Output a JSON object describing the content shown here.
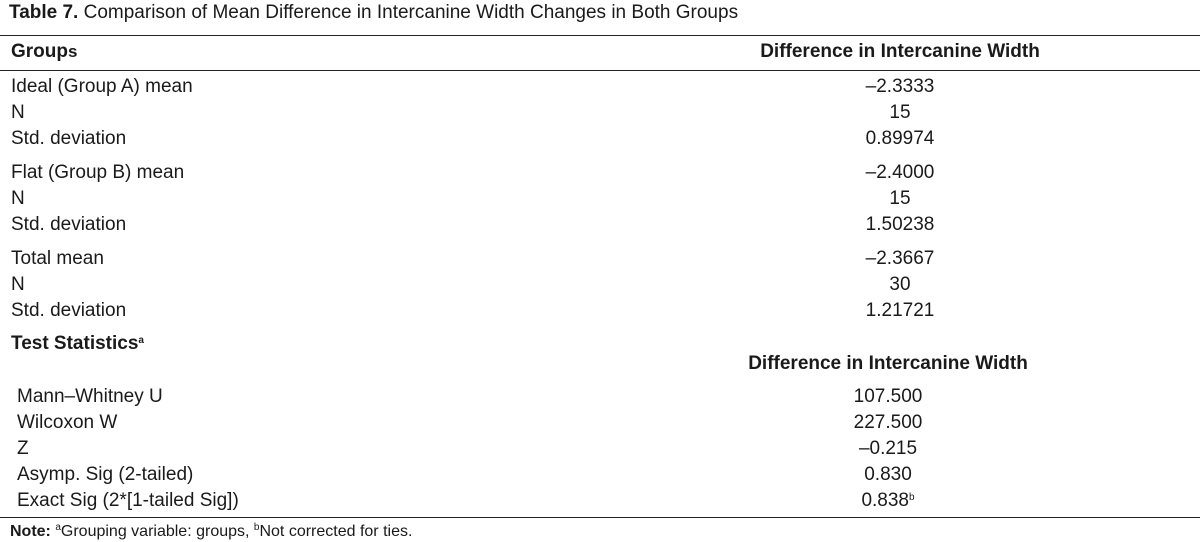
{
  "caption": {
    "number": "Table 7.",
    "text": "Comparison of Mean Difference in Intercanine Width Changes in Both Groups"
  },
  "table": {
    "col_groups": "Group",
    "col_groups_suffix": "s",
    "col_value": "Difference in Intercanine Width",
    "rows": [
      {
        "label": "Ideal (Group A) mean",
        "value": "–2.3333"
      },
      {
        "label": "N",
        "value": "15"
      },
      {
        "label": "Std. deviation",
        "value": "0.89974"
      },
      {
        "label": "Flat (Group B) mean",
        "value": "–2.4000"
      },
      {
        "label": "N",
        "value": "15"
      },
      {
        "label": "Std. deviation",
        "value": "1.50238"
      },
      {
        "label": "Total mean",
        "value": "–2.3667"
      },
      {
        "label": "N",
        "value": "30"
      },
      {
        "label": "Std. deviation",
        "value": "1.21721"
      }
    ]
  },
  "test_statistics": {
    "title": "Test Statistics",
    "title_sup": "a",
    "col_value": "Difference in Intercanine Width",
    "rows": [
      {
        "label": "Mann–Whitney U",
        "value": "107.500",
        "sup": ""
      },
      {
        "label": "Wilcoxon W",
        "value": "227.500",
        "sup": ""
      },
      {
        "label": "Z",
        "value": "–0.215",
        "sup": ""
      },
      {
        "label": "Asymp. Sig (2-tailed)",
        "value": "0.830",
        "sup": ""
      },
      {
        "label": "Exact Sig (2*[1-tailed Sig])",
        "value": "0.838",
        "sup": "b"
      }
    ]
  },
  "note": {
    "label": "Note:",
    "sup_a": "a",
    "text_a": "Grouping variable: groups, ",
    "sup_b": "b",
    "text_b": "Not corrected for ties."
  }
}
